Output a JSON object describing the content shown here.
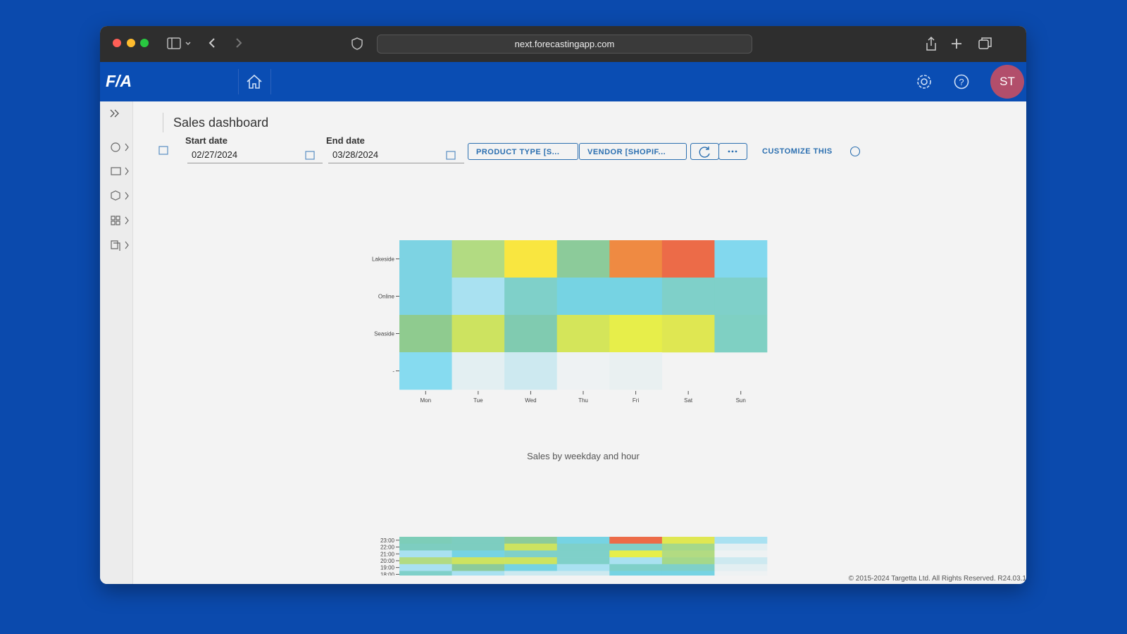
{
  "browser": {
    "url": "next.forecastingapp.com"
  },
  "app": {
    "logo": "F/A",
    "avatar": "ST"
  },
  "page": {
    "title": "Sales dashboard"
  },
  "filters": {
    "start_label": "Start date",
    "start_value": "02/27/2024",
    "end_label": "End date",
    "end_value": "03/28/2024",
    "product_type": "PRODUCT TYPE [S...",
    "vendor": "VENDOR [SHOPIF...",
    "customize": "CUSTOMIZE THIS"
  },
  "heatmap_store": {
    "rows": [
      "Lakeside",
      "Online",
      "Seaside",
      "-"
    ],
    "columns": [
      "Mon",
      "Tue",
      "Wed",
      "Thu",
      "Fri",
      "Sat",
      "Sun"
    ],
    "colors": [
      [
        "#7dd3e3",
        "#b2db82",
        "#f9e640",
        "#8ccb9a",
        "#ef8a42",
        "#ec6b48",
        "#82d8ee"
      ],
      [
        "#7dd3e3",
        "#a9e1f1",
        "#7fd0c9",
        "#76d3e3",
        "#76d3e3",
        "#7fd0c9",
        "#7fd0c9"
      ],
      [
        "#8fcb8f",
        "#cde360",
        "#80cbb0",
        "#d4e55a",
        "#e7ee4a",
        "#dfe752",
        "#7fd0c3"
      ],
      [
        "#86dbf0",
        "#e3eff2",
        "#cde9f0",
        "#eef2f3",
        "#e9f0f1",
        null,
        null
      ]
    ]
  },
  "heatmap_hour": {
    "title": "Sales by weekday and hour",
    "rows": [
      "23:00",
      "22:00",
      "21:00",
      "20:00",
      "19:00",
      "18:00"
    ],
    "colors": [
      [
        "#7dcdb8",
        "#7dcdc0",
        "#8ccb9a",
        "#76d3e3",
        "#ec6b48",
        "#dfe752",
        "#a9e1f1"
      ],
      [
        "#7dcdc0",
        "#7dcdc0",
        "#cde360",
        "#7fd0c9",
        "#7fd0c9",
        "#a5d88a",
        "#e3eff2"
      ],
      [
        "#a9e1f1",
        "#76d3e3",
        "#7fd0c9",
        "#7fd0c9",
        "#e7ee4a",
        "#b2db82",
        "#eef2f3"
      ],
      [
        "#b2db82",
        "#cde360",
        "#cde360",
        "#7fd0c9",
        "#a9e1f1",
        "#a5d88a",
        "#cde9f0"
      ],
      [
        "#a9e1f1",
        "#8ccb9a",
        "#76d3e3",
        "#a9e1f1",
        "#7fd0c9",
        "#7fd0c9",
        "#e3eff2"
      ],
      [
        "#7fd0c9",
        "#a9e1f1",
        "#cde9f0",
        "#cde9f0",
        "#76d3e3",
        "#76d3e3",
        "#eef2f3"
      ]
    ]
  },
  "footer": {
    "text": "© 2015-2024 Targetta Ltd. All Rights Reserved. R24.03.1"
  }
}
